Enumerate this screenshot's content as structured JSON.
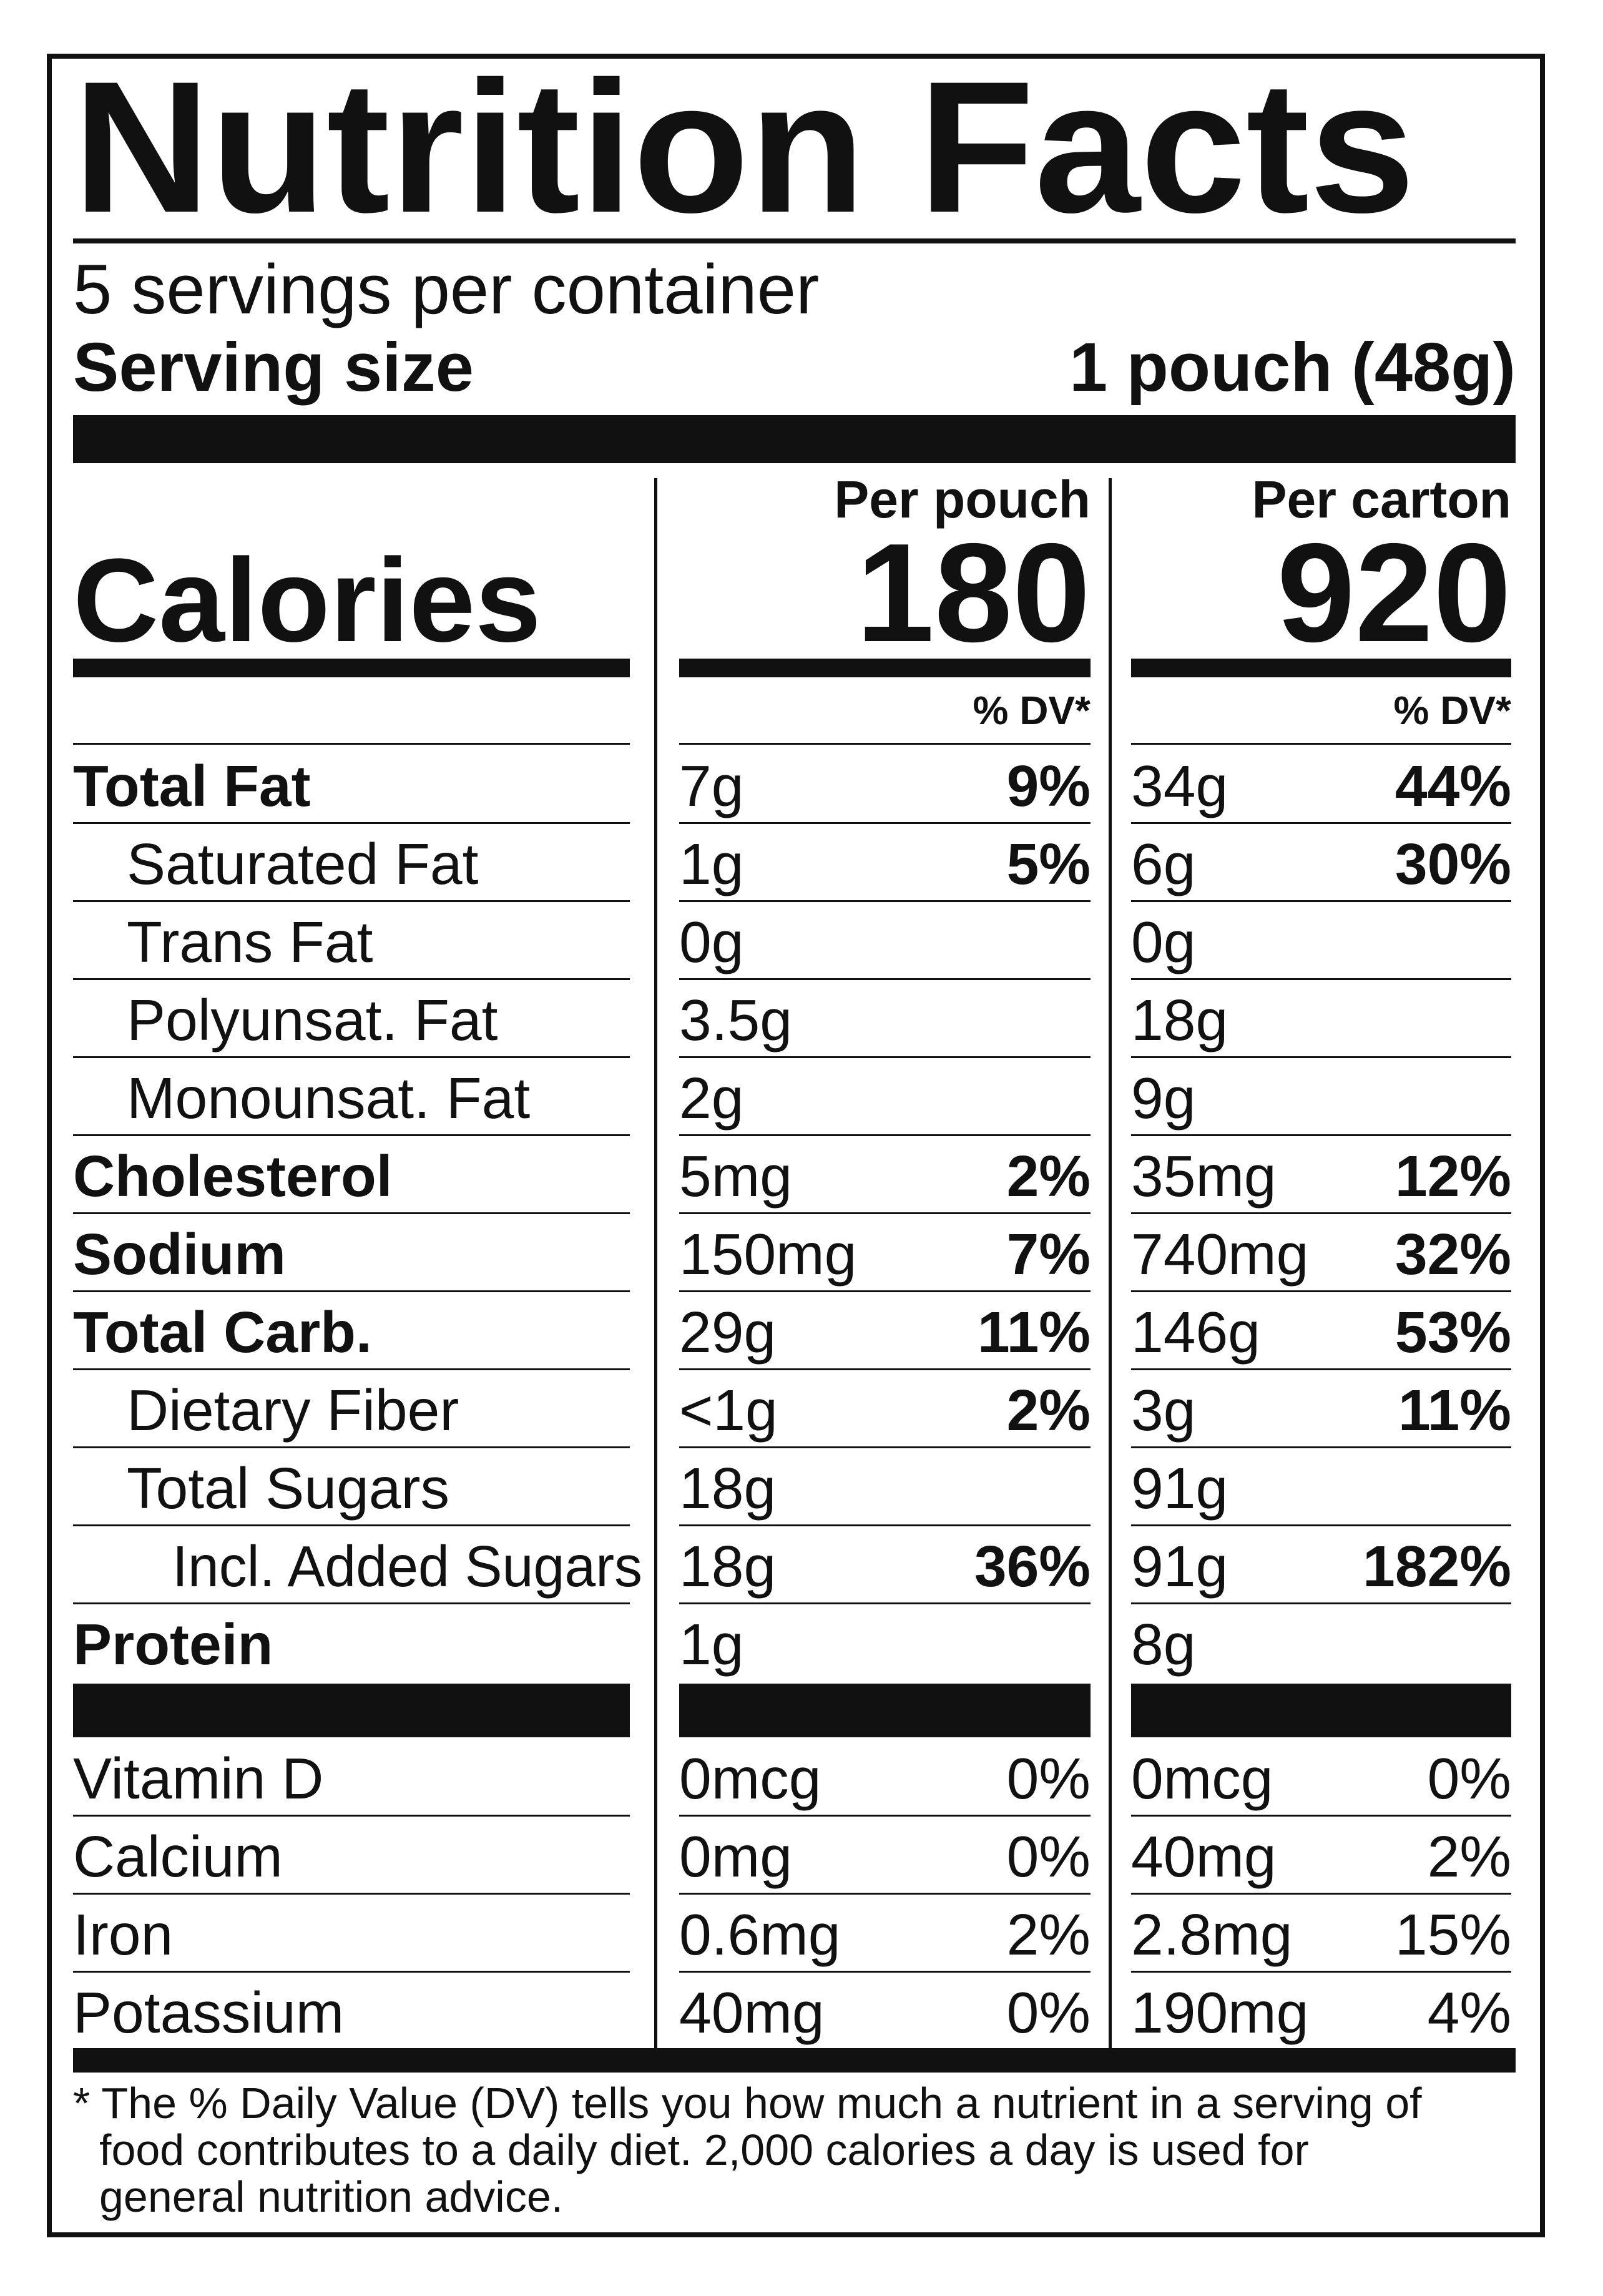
{
  "title": "Nutrition Facts",
  "servings": "5 servings per container",
  "serving_size": {
    "label": "Serving size",
    "value": "1 pouch (48g)"
  },
  "calories_label": "Calories",
  "columns": [
    {
      "header": "Per pouch",
      "calories": "180",
      "dv_header": "% DV*"
    },
    {
      "header": "Per carton",
      "calories": "920",
      "dv_header": "% DV*"
    }
  ],
  "nutrients": [
    {
      "name": "Total Fat",
      "bold": true,
      "indent": 0,
      "values": [
        [
          "7g",
          "9%"
        ],
        [
          "34g",
          "44%"
        ]
      ]
    },
    {
      "name": "Saturated Fat",
      "bold": false,
      "indent": 1,
      "values": [
        [
          "1g",
          "5%"
        ],
        [
          "6g",
          "30%"
        ]
      ]
    },
    {
      "name": "Trans Fat",
      "bold": false,
      "indent": 1,
      "values": [
        [
          "0g",
          null
        ],
        [
          "0g",
          null
        ]
      ]
    },
    {
      "name": "Polyunsat. Fat",
      "bold": false,
      "indent": 1,
      "values": [
        [
          "3.5g",
          null
        ],
        [
          "18g",
          null
        ]
      ]
    },
    {
      "name": "Monounsat. Fat",
      "bold": false,
      "indent": 1,
      "values": [
        [
          "2g",
          null
        ],
        [
          "9g",
          null
        ]
      ]
    },
    {
      "name": "Cholesterol",
      "bold": true,
      "indent": 0,
      "values": [
        [
          "5mg",
          "2%"
        ],
        [
          "35mg",
          "12%"
        ]
      ]
    },
    {
      "name": "Sodium",
      "bold": true,
      "indent": 0,
      "values": [
        [
          "150mg",
          "7%"
        ],
        [
          "740mg",
          "32%"
        ]
      ]
    },
    {
      "name": "Total Carb.",
      "bold": true,
      "indent": 0,
      "values": [
        [
          "29g",
          "11%"
        ],
        [
          "146g",
          "53%"
        ]
      ]
    },
    {
      "name": "Dietary Fiber",
      "bold": false,
      "indent": 1,
      "values": [
        [
          "<1g",
          "2%"
        ],
        [
          "3g",
          "11%"
        ]
      ]
    },
    {
      "name": "Total Sugars",
      "bold": false,
      "indent": 1,
      "values": [
        [
          "18g",
          null
        ],
        [
          "91g",
          null
        ]
      ]
    },
    {
      "name": "Incl. Added Sugars",
      "bold": false,
      "indent": 2,
      "values": [
        [
          "18g",
          "36%"
        ],
        [
          "91g",
          "182%"
        ]
      ]
    },
    {
      "name": "Protein",
      "bold": true,
      "indent": 0,
      "values": [
        [
          "1g",
          null
        ],
        [
          "8g",
          null
        ]
      ]
    }
  ],
  "vitamins": [
    {
      "name": "Vitamin D",
      "values": [
        [
          "0mcg",
          "0%"
        ],
        [
          "0mcg",
          "0%"
        ]
      ]
    },
    {
      "name": "Calcium",
      "values": [
        [
          "0mg",
          "0%"
        ],
        [
          "40mg",
          "2%"
        ]
      ]
    },
    {
      "name": "Iron",
      "values": [
        [
          "0.6mg",
          "2%"
        ],
        [
          "2.8mg",
          "15%"
        ]
      ]
    },
    {
      "name": "Potassium",
      "values": [
        [
          "40mg",
          "0%"
        ],
        [
          "190mg",
          "4%"
        ]
      ]
    }
  ],
  "footnote": [
    "* The % Daily Value (DV) tells you how much a nutrient in a serving of",
    "food contributes to a daily diet. 2,000 calories a day is used for",
    "general nutrition advice."
  ]
}
